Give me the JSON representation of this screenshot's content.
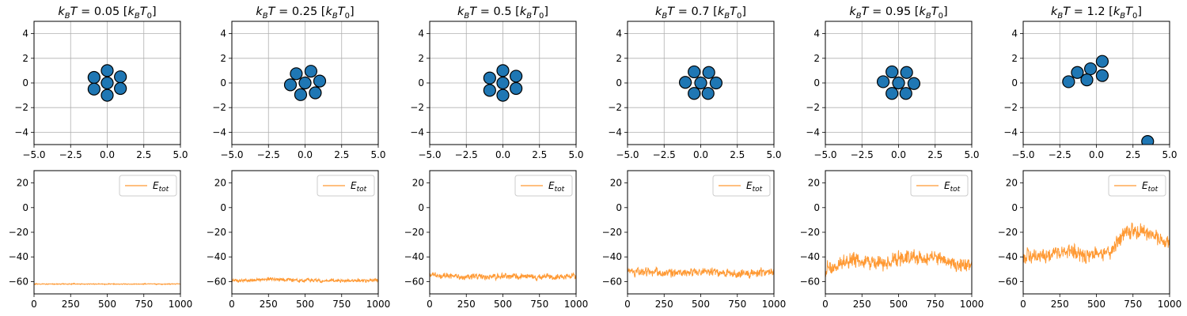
{
  "figure": {
    "title_prefix": "kBT = ",
    "title_suffix": " [kBT0]",
    "accent_colors": {
      "particle_fill": "#1f77b4",
      "energy_line": "#ff9933",
      "grid": "#b0b0b0"
    }
  },
  "chart_data": [
    {
      "type": "scatter",
      "panel": 1,
      "title_value": "0.05",
      "xlim": [
        -5,
        5
      ],
      "ylim": [
        -5,
        5
      ],
      "xticks": [
        "−5.0",
        "−2.5",
        "0.0",
        "2.5",
        "5.0"
      ],
      "yticks": [
        "−4",
        "−2",
        "0",
        "2",
        "4"
      ],
      "grid": true,
      "points": [
        [
          -0.9,
          0.45
        ],
        [
          0.0,
          1.0
        ],
        [
          0.9,
          0.5
        ],
        [
          -0.9,
          -0.5
        ],
        [
          0.0,
          0.0
        ],
        [
          0.9,
          -0.45
        ],
        [
          0.0,
          -1.0
        ]
      ]
    },
    {
      "type": "scatter",
      "panel": 2,
      "title_value": "0.25",
      "xlim": [
        -5,
        5
      ],
      "ylim": [
        -5,
        5
      ],
      "xticks": [
        "−5.0",
        "−2.5",
        "0.0",
        "2.5",
        "5.0"
      ],
      "yticks": [
        "−4",
        "−2",
        "0",
        "2",
        "4"
      ],
      "grid": true,
      "points": [
        [
          -0.6,
          0.75
        ],
        [
          0.4,
          0.95
        ],
        [
          -1.0,
          -0.15
        ],
        [
          0.0,
          0.0
        ],
        [
          1.0,
          0.15
        ],
        [
          -0.3,
          -0.95
        ],
        [
          0.7,
          -0.8
        ]
      ]
    },
    {
      "type": "scatter",
      "panel": 3,
      "title_value": "0.5",
      "xlim": [
        -5,
        5
      ],
      "ylim": [
        -5,
        5
      ],
      "xticks": [
        "−5.0",
        "−2.5",
        "0.0",
        "2.5",
        "5.0"
      ],
      "yticks": [
        "−4",
        "−2",
        "0",
        "2",
        "4"
      ],
      "grid": true,
      "points": [
        [
          -0.9,
          0.4
        ],
        [
          0.0,
          1.0
        ],
        [
          0.9,
          0.55
        ],
        [
          -0.9,
          -0.6
        ],
        [
          0.0,
          0.0
        ],
        [
          0.9,
          -0.45
        ],
        [
          0.0,
          -1.0
        ]
      ]
    },
    {
      "type": "scatter",
      "panel": 4,
      "title_value": "0.7",
      "xlim": [
        -5,
        5
      ],
      "ylim": [
        -5,
        5
      ],
      "xticks": [
        "−5.0",
        "−2.5",
        "0.0",
        "2.5",
        "5.0"
      ],
      "yticks": [
        "−4",
        "−2",
        "0",
        "2",
        "4"
      ],
      "grid": true,
      "points": [
        [
          -0.45,
          0.9
        ],
        [
          0.55,
          0.85
        ],
        [
          -1.05,
          0.05
        ],
        [
          0.0,
          0.0
        ],
        [
          1.05,
          0.0
        ],
        [
          -0.45,
          -0.85
        ],
        [
          0.5,
          -0.85
        ]
      ]
    },
    {
      "type": "scatter",
      "panel": 5,
      "title_value": "0.95",
      "xlim": [
        -5,
        5
      ],
      "ylim": [
        -5,
        5
      ],
      "xticks": [
        "−5.0",
        "−2.5",
        "0.0",
        "2.5",
        "5.0"
      ],
      "yticks": [
        "−4",
        "−2",
        "0",
        "2",
        "4"
      ],
      "grid": true,
      "points": [
        [
          -0.45,
          0.9
        ],
        [
          0.55,
          0.85
        ],
        [
          -1.05,
          0.1
        ],
        [
          0.0,
          0.0
        ],
        [
          1.05,
          -0.05
        ],
        [
          -0.45,
          -0.85
        ],
        [
          0.5,
          -0.85
        ]
      ]
    },
    {
      "type": "scatter",
      "panel": 6,
      "title_value": "1.2",
      "xlim": [
        -5,
        5
      ],
      "ylim": [
        -5,
        5
      ],
      "xticks": [
        "−5.0",
        "−2.5",
        "0.0",
        "2.5",
        "5.0"
      ],
      "yticks": [
        "−4",
        "−2",
        "0",
        "2",
        "4"
      ],
      "grid": true,
      "points": [
        [
          -1.3,
          0.85
        ],
        [
          -1.9,
          0.1
        ],
        [
          -0.4,
          1.15
        ],
        [
          0.4,
          1.75
        ],
        [
          -0.65,
          0.25
        ],
        [
          0.4,
          0.6
        ],
        [
          3.5,
          -4.75
        ]
      ]
    },
    {
      "type": "line",
      "panel": 7,
      "xlim": [
        0,
        1000
      ],
      "ylim": [
        -70,
        30
      ],
      "xticks": [
        "0",
        "250",
        "500",
        "750",
        "1000"
      ],
      "yticks": [
        "−60",
        "−40",
        "−20",
        "0",
        "20"
      ],
      "legend": "Etot",
      "legend_position": "top-right",
      "mean": -62,
      "noise_amplitude": 0.6,
      "trend": [
        [
          0,
          -62
        ],
        [
          1000,
          -62
        ]
      ]
    },
    {
      "type": "line",
      "panel": 8,
      "xlim": [
        0,
        1000
      ],
      "ylim": [
        -70,
        30
      ],
      "xticks": [
        "0",
        "250",
        "500",
        "750",
        "1000"
      ],
      "yticks": [
        "−60",
        "−40",
        "−20",
        "0",
        "20"
      ],
      "legend": "Etot",
      "legend_position": "top-right",
      "mean": -59.5,
      "noise_amplitude": 2,
      "trend": [
        [
          0,
          -59.5
        ],
        [
          250,
          -58
        ],
        [
          500,
          -59
        ],
        [
          750,
          -59.5
        ],
        [
          1000,
          -59
        ]
      ]
    },
    {
      "type": "line",
      "panel": 9,
      "xlim": [
        0,
        1000
      ],
      "ylim": [
        -70,
        30
      ],
      "xticks": [
        "0",
        "250",
        "500",
        "750",
        "1000"
      ],
      "yticks": [
        "−60",
        "−40",
        "−20",
        "0",
        "20"
      ],
      "legend": "Etot",
      "legend_position": "top-right",
      "mean": -56,
      "noise_amplitude": 3.5,
      "trend": [
        [
          0,
          -55
        ],
        [
          250,
          -56
        ],
        [
          500,
          -55.5
        ],
        [
          750,
          -56.5
        ],
        [
          1000,
          -56
        ]
      ]
    },
    {
      "type": "line",
      "panel": 10,
      "xlim": [
        0,
        1000
      ],
      "ylim": [
        -70,
        30
      ],
      "xticks": [
        "0",
        "250",
        "500",
        "750",
        "1000"
      ],
      "yticks": [
        "−60",
        "−40",
        "−20",
        "0",
        "20"
      ],
      "legend": "Etot",
      "legend_position": "top-right",
      "mean": -53,
      "noise_amplitude": 5,
      "trend": [
        [
          0,
          -52
        ],
        [
          250,
          -53
        ],
        [
          500,
          -52
        ],
        [
          750,
          -54
        ],
        [
          1000,
          -52
        ]
      ]
    },
    {
      "type": "line",
      "panel": 11,
      "xlim": [
        0,
        1000
      ],
      "ylim": [
        -70,
        30
      ],
      "xticks": [
        "0",
        "250",
        "500",
        "750",
        "1000"
      ],
      "yticks": [
        "−60",
        "−40",
        "−20",
        "0",
        "20"
      ],
      "legend": "Etot",
      "legend_position": "top-right",
      "mean": -45,
      "noise_amplitude": 9,
      "trend": [
        [
          0,
          -50
        ],
        [
          200,
          -42
        ],
        [
          400,
          -46
        ],
        [
          550,
          -40
        ],
        [
          800,
          -42
        ],
        [
          1000,
          -48
        ]
      ]
    },
    {
      "type": "line",
      "panel": 12,
      "xlim": [
        0,
        1000
      ],
      "ylim": [
        -70,
        30
      ],
      "xticks": [
        "0",
        "250",
        "500",
        "750",
        "1000"
      ],
      "yticks": [
        "−60",
        "−40",
        "−20",
        "0",
        "20"
      ],
      "legend": "Etot",
      "legend_position": "top-right",
      "mean": -37,
      "noise_amplitude": 9,
      "trend": [
        [
          0,
          -40
        ],
        [
          250,
          -36
        ],
        [
          450,
          -38
        ],
        [
          600,
          -36
        ],
        [
          700,
          -20
        ],
        [
          850,
          -20
        ],
        [
          1000,
          -30
        ]
      ]
    }
  ]
}
